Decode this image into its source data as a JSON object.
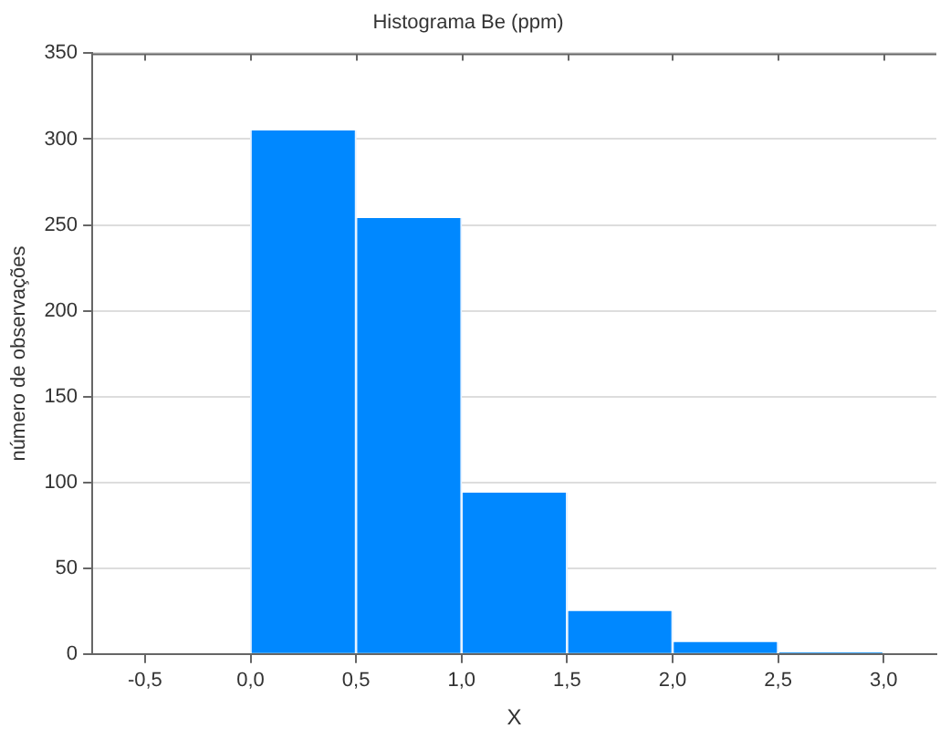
{
  "chart_data": {
    "type": "histogram",
    "title": "Histograma Be (ppm)",
    "xlabel": "X",
    "ylabel": "número de observações",
    "bins": [
      0,
      0.5,
      1,
      1.5,
      2,
      2.5,
      3
    ],
    "values": [
      305,
      254,
      94,
      25,
      7,
      1
    ],
    "color": "#0088ff",
    "xlim": [
      -0.75,
      3.25
    ],
    "xticks": [
      {
        "value": -0.5,
        "label": "-0,5"
      },
      {
        "value": 0,
        "label": "0,0"
      },
      {
        "value": 0.5,
        "label": "0,5"
      },
      {
        "value": 1,
        "label": "1,0"
      },
      {
        "value": 1.5,
        "label": "1,5"
      },
      {
        "value": 2,
        "label": "2,0"
      },
      {
        "value": 2.5,
        "label": "2,5"
      },
      {
        "value": 3,
        "label": "3,0"
      }
    ],
    "ylim": [
      0,
      350
    ],
    "yticks": [
      0,
      50,
      100,
      150,
      200,
      250,
      300,
      350
    ],
    "grid": "y",
    "legend": false
  }
}
